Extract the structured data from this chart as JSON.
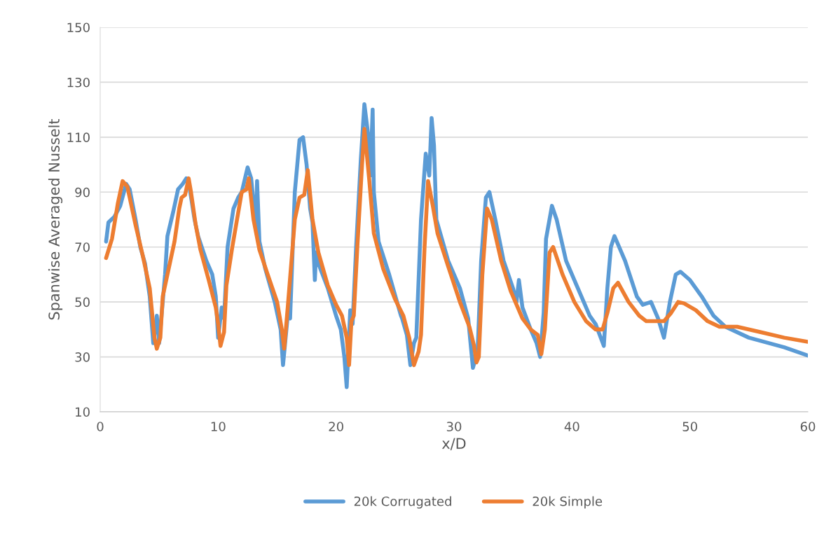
{
  "chart_data": {
    "type": "line",
    "xlabel": "x/D",
    "ylabel": "Spanwise Averaged Nusselt",
    "xlim": [
      0,
      60
    ],
    "xticks": [
      0,
      10,
      20,
      30,
      40,
      50,
      60
    ],
    "ylim": [
      10,
      150
    ],
    "yticks": [
      10,
      30,
      50,
      70,
      90,
      110,
      130,
      150
    ],
    "grid": "y",
    "legend": "bottom",
    "marker": "none",
    "line_style": "solid",
    "series": [
      {
        "name": "20k Corrugated",
        "color": "#5b9bd5",
        "x": [
          0.5,
          0.7,
          1.2,
          1.7,
          2.2,
          2.5,
          3.0,
          3.4,
          3.8,
          4.2,
          4.5,
          4.8,
          5.0,
          5.5,
          5.7,
          6.2,
          6.6,
          7.0,
          7.3,
          7.6,
          8.0,
          8.3,
          9.0,
          9.5,
          9.8,
          10.0,
          10.3,
          10.5,
          10.8,
          11.3,
          11.7,
          12.0,
          12.5,
          12.8,
          13.2,
          13.3,
          13.5,
          14.0,
          14.8,
          15.3,
          15.5,
          15.9,
          16.1,
          16.5,
          16.9,
          17.2,
          17.5,
          17.8,
          18.0,
          18.2,
          18.3,
          18.5,
          19.3,
          20.0,
          20.4,
          20.7,
          20.9,
          21.2,
          21.4,
          21.7,
          22.1,
          22.4,
          22.8,
          22.9,
          23.1,
          23.2,
          23.6,
          24.5,
          25.5,
          25.6,
          26.0,
          26.3,
          26.6,
          26.8,
          27.2,
          27.6,
          27.9,
          28.1,
          28.3,
          28.5,
          29.5,
          30.5,
          31.2,
          31.6,
          32.0,
          32.3,
          32.7,
          33.0,
          33.5,
          34.2,
          35.0,
          35.3,
          35.5,
          35.8,
          36.5,
          37.0,
          37.3,
          37.6,
          37.8,
          38.3,
          38.7,
          39.5,
          40.5,
          41.5,
          42.0,
          42.7,
          43.0,
          43.3,
          43.6,
          44.5,
          45.5,
          46.0,
          46.7,
          47.3,
          47.8,
          48.3,
          48.8,
          49.2,
          50.0,
          51.0,
          52.0,
          53.0,
          55.0,
          58.0,
          60.0
        ],
        "values": [
          72,
          79,
          81,
          85,
          93,
          91,
          80,
          70,
          64,
          52,
          35,
          45,
          35,
          60,
          74,
          83,
          91,
          93,
          95,
          91,
          80,
          74,
          65,
          60,
          52,
          37,
          48,
          44,
          70,
          84,
          88,
          90,
          99,
          95,
          77,
          94,
          72,
          62,
          50,
          40,
          27,
          45,
          44,
          90,
          109,
          110,
          100,
          84,
          79,
          58,
          68,
          64,
          55,
          45,
          40,
          30,
          19,
          47,
          42,
          70,
          102,
          122,
          108,
          96,
          120,
          90,
          72,
          60,
          45,
          44,
          38,
          27,
          35,
          37,
          80,
          104,
          96,
          117,
          107,
          80,
          65,
          55,
          44,
          26,
          32,
          65,
          88,
          90,
          80,
          65,
          55,
          50,
          58,
          48,
          40,
          35,
          30,
          46,
          73,
          85,
          80,
          65,
          55,
          45,
          42,
          34,
          55,
          70,
          74,
          65,
          52,
          49,
          50,
          44,
          37,
          50,
          60,
          61,
          58,
          52,
          45,
          41,
          37,
          33.5,
          30.5
        ]
      },
      {
        "name": "20k Simple",
        "color": "#ed7d31",
        "x": [
          0.5,
          1.0,
          1.5,
          1.9,
          2.3,
          3.0,
          3.6,
          4.2,
          4.6,
          4.8,
          5.1,
          5.3,
          5.8,
          6.3,
          6.7,
          6.9,
          7.2,
          7.5,
          7.7,
          8.1,
          8.5,
          9.2,
          9.8,
          10.0,
          10.2,
          10.5,
          10.7,
          11.2,
          11.6,
          12.0,
          12.4,
          12.6,
          13.0,
          13.5,
          14.2,
          15.0,
          15.4,
          15.6,
          15.9,
          16.5,
          16.9,
          17.3,
          17.6,
          18.0,
          18.5,
          19.3,
          20.0,
          20.5,
          20.9,
          21.1,
          21.3,
          21.5,
          21.8,
          22.2,
          22.4,
          22.8,
          23.2,
          24.0,
          25.0,
          25.7,
          26.2,
          26.6,
          27.0,
          27.2,
          27.5,
          27.8,
          28.2,
          28.6,
          29.5,
          30.5,
          31.3,
          31.7,
          31.9,
          32.1,
          32.4,
          32.8,
          33.2,
          34.0,
          34.8,
          35.8,
          36.5,
          37.1,
          37.4,
          37.7,
          38.1,
          38.4,
          39.2,
          40.2,
          41.2,
          42.0,
          42.6,
          43.0,
          43.5,
          43.9,
          44.8,
          45.7,
          46.3,
          47.2,
          47.8,
          48.4,
          49.0,
          49.5,
          50.5,
          51.5,
          52.5,
          54.0,
          56.0,
          58.0,
          60.0
        ],
        "values": [
          66,
          73,
          86,
          94,
          92,
          78,
          67,
          55,
          37,
          33,
          37,
          52,
          62,
          72,
          84,
          88,
          89,
          95,
          90,
          78,
          69,
          58,
          48,
          42,
          34,
          39,
          56,
          70,
          80,
          90,
          91,
          95,
          80,
          69,
          60,
          50,
          40,
          33,
          48,
          80,
          88,
          89,
          98,
          80,
          68,
          56,
          49,
          45,
          37,
          27,
          43,
          45,
          70,
          100,
          113,
          95,
          75,
          62,
          51,
          45,
          37,
          27,
          32,
          38,
          70,
          94,
          85,
          75,
          63,
          50,
          41,
          34,
          28,
          30,
          60,
          84,
          80,
          65,
          54,
          44,
          40,
          38,
          31,
          40,
          68,
          70,
          60,
          50,
          43,
          40,
          40,
          46,
          55,
          57,
          50,
          45,
          43,
          43,
          43,
          46,
          50,
          49.5,
          47,
          43,
          41,
          41,
          39,
          37,
          35.5
        ]
      }
    ]
  }
}
